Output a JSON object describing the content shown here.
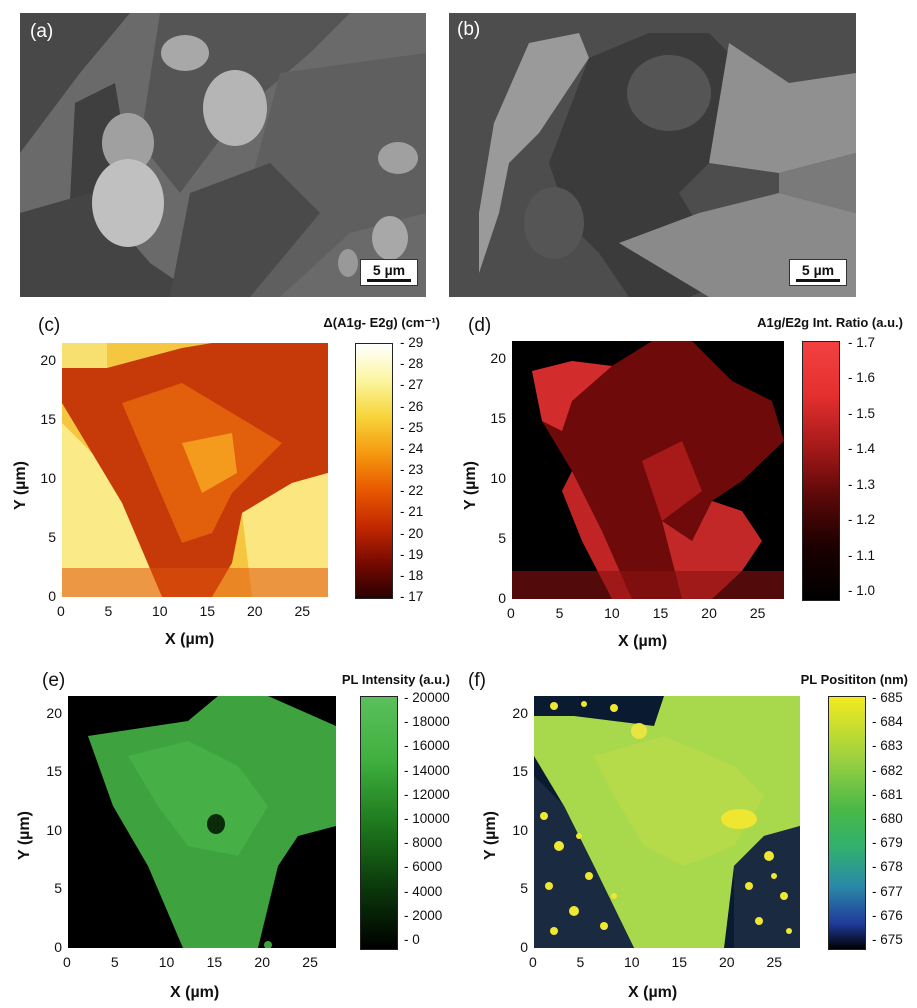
{
  "panels": {
    "a": {
      "label": "(a)",
      "scale": "5 µm"
    },
    "b": {
      "label": "(b)",
      "scale": "5 µm"
    },
    "c": {
      "label": "(c)",
      "colorbar_title": "Δ(A1g- E2g)  (cm⁻¹)",
      "colorbar_ticks": [
        "29",
        "28",
        "27",
        "26",
        "25",
        "24",
        "23",
        "22",
        "21",
        "20",
        "19",
        "18",
        "17"
      ]
    },
    "d": {
      "label": "(d)",
      "colorbar_title": "A1g/E2g Int. Ratio  (a.u.)",
      "colorbar_ticks": [
        "1.7",
        "1.6",
        "1.5",
        "1.4",
        "1.3",
        "1.2",
        "1.1",
        "1.0"
      ]
    },
    "e": {
      "label": "(e)",
      "colorbar_title": "PL Intensity (a.u.)",
      "colorbar_ticks": [
        "20000",
        "18000",
        "16000",
        "14000",
        "12000",
        "10000",
        "8000",
        "6000",
        "4000",
        "2000",
        "0"
      ]
    },
    "f": {
      "label": "(f)",
      "colorbar_title": "PL Posititon  (nm)",
      "colorbar_ticks": [
        "685",
        "684",
        "683",
        "682",
        "681",
        "680",
        "679",
        "678",
        "677",
        "676",
        "675"
      ]
    }
  },
  "axes": {
    "x_ticks": [
      "0",
      "5",
      "10",
      "15",
      "20",
      "25"
    ],
    "y_ticks": [
      "20",
      "15",
      "10",
      "5",
      "0"
    ],
    "x_label": "X (µm)",
    "y_label": "Y (µm)"
  },
  "colors": {
    "c_cmap": [
      "#2a0000",
      "#7a0a00",
      "#c42a00",
      "#e85a00",
      "#f59a10",
      "#f7d43a",
      "#fbf6a0",
      "#ffffff"
    ],
    "d_cmap": [
      "#000000",
      "#3a0000",
      "#8a0f0f",
      "#d12222",
      "#f24040"
    ],
    "e_cmap": [
      "#000000",
      "#0b3a0b",
      "#1e7a1e",
      "#3fb03f",
      "#5cc05c"
    ],
    "f_cmap": [
      "#000000",
      "#1f3a9a",
      "#2aa0a0",
      "#30b050",
      "#9ad040",
      "#f2ea20"
    ]
  }
}
